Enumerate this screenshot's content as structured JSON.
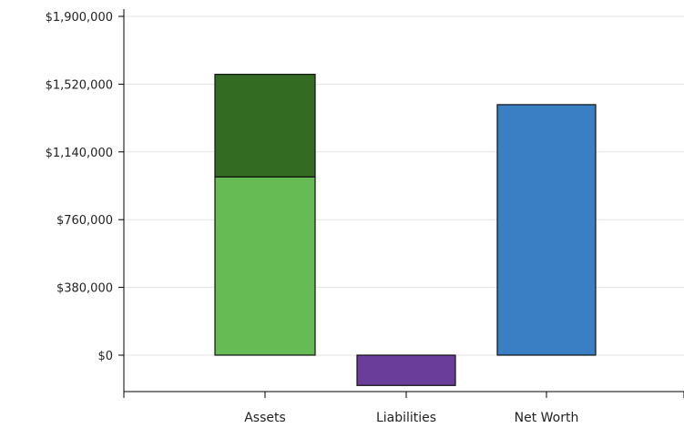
{
  "chart_data": {
    "type": "bar",
    "stacked": true,
    "categories": [
      "Assets",
      "Liabilities",
      "Net Worth"
    ],
    "series": [
      {
        "color": "#66bb55",
        "values": [
          1000000,
          -170000,
          0
        ]
      },
      {
        "color": "#336b22",
        "values": [
          575000,
          0,
          0
        ]
      },
      {
        "color": "#3a7ec4",
        "values": [
          0,
          0,
          1405000
        ]
      },
      {
        "color": "#6a3d9a",
        "values": [
          0,
          0,
          0
        ]
      }
    ],
    "bar_colors": {
      "Assets": [
        "#66bb55",
        "#336b22"
      ],
      "Liabilities": [
        "#6a3d9a"
      ],
      "Net Worth": [
        "#3a7ec4"
      ]
    },
    "ylim": [
      -190000,
      1900000
    ],
    "yticks": [
      0,
      380000,
      760000,
      1140000,
      1520000,
      1900000
    ],
    "ytick_labels": [
      "$0",
      "$380,000",
      "$760,000",
      "$1,140,000",
      "$1,520,000",
      "$1,900,000"
    ],
    "grid": true,
    "title": "",
    "xlabel": "",
    "ylabel": ""
  }
}
